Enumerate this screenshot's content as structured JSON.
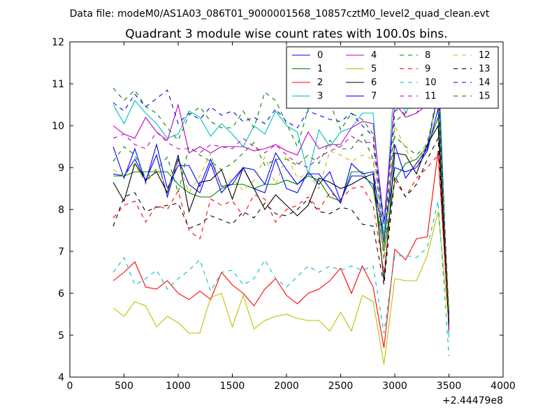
{
  "chart_data": {
    "type": "line",
    "suptitle": "Data file: modeM0/AS1A03_086T01_9000001568_10857cztM0_level2_quad_clean.evt",
    "title": "Quadrant 3 module wise count rates with 100.0s bins.",
    "xlabel": "",
    "ylabel": "",
    "x_offset_label": "+2.44479e8",
    "xlim": [
      0,
      4000
    ],
    "ylim": [
      4,
      12
    ],
    "xticks": [
      0,
      500,
      1000,
      1500,
      2000,
      2500,
      3000,
      3500,
      4000
    ],
    "yticks": [
      4,
      5,
      6,
      7,
      8,
      9,
      10,
      11,
      12
    ],
    "x": [
      400,
      500,
      600,
      700,
      800,
      900,
      1000,
      1100,
      1200,
      1300,
      1400,
      1500,
      1600,
      1700,
      1800,
      1900,
      2000,
      2100,
      2200,
      2300,
      2400,
      2500,
      2600,
      2700,
      2800,
      2900,
      3000,
      3100,
      3200,
      3300,
      3400,
      3500
    ],
    "legend_position": "top-right",
    "series": [
      {
        "name": "0",
        "color": "#0000ff",
        "dash": "solid",
        "values": [
          8.85,
          8.8,
          9.2,
          8.7,
          9.3,
          8.3,
          9.2,
          8.6,
          8.4,
          9.1,
          8.4,
          8.7,
          9.0,
          8.5,
          8.4,
          9.2,
          8.5,
          8.4,
          8.9,
          8.6,
          8.9,
          8.2,
          8.8,
          8.8,
          8.6,
          7.4,
          9.0,
          8.9,
          9.0,
          9.4,
          10.4,
          5.4
        ]
      },
      {
        "name": "1",
        "color": "#008000",
        "dash": "solid",
        "values": [
          8.8,
          8.8,
          8.9,
          8.9,
          8.9,
          8.9,
          8.6,
          8.4,
          8.3,
          8.3,
          8.5,
          8.6,
          8.6,
          8.5,
          8.6,
          8.6,
          8.7,
          8.6,
          8.8,
          8.7,
          8.3,
          8.2,
          8.9,
          8.9,
          8.5,
          7.0,
          8.7,
          9.1,
          9.2,
          9.5,
          10.2,
          5.3
        ]
      },
      {
        "name": "2",
        "color": "#ff0000",
        "dash": "solid",
        "values": [
          6.3,
          6.5,
          6.75,
          6.15,
          6.1,
          6.3,
          6.0,
          5.85,
          6.05,
          5.85,
          6.5,
          6.2,
          6.0,
          5.7,
          6.1,
          6.35,
          5.95,
          5.75,
          6.0,
          6.1,
          6.3,
          6.6,
          6.0,
          6.65,
          6.15,
          4.7,
          7.05,
          6.8,
          7.3,
          7.35,
          9.4,
          5.2
        ]
      },
      {
        "name": "3",
        "color": "#00bfbf",
        "dash": "solid",
        "values": [
          10.5,
          10.05,
          10.6,
          10.3,
          10.05,
          9.7,
          9.8,
          10.35,
          10.2,
          9.75,
          10.05,
          9.8,
          9.5,
          10.0,
          9.8,
          10.35,
          10.0,
          9.85,
          8.85,
          9.9,
          9.5,
          9.85,
          9.95,
          10.3,
          10.3,
          7.3,
          11.25,
          10.3,
          10.85,
          10.8,
          11.8,
          4.95
        ]
      },
      {
        "name": "4",
        "color": "#bf00bf",
        "dash": "solid",
        "values": [
          10.0,
          9.8,
          9.7,
          10.2,
          9.85,
          9.65,
          10.5,
          9.35,
          9.5,
          9.35,
          9.5,
          9.5,
          9.5,
          9.4,
          9.45,
          9.55,
          9.4,
          9.3,
          9.85,
          9.45,
          9.55,
          9.55,
          9.95,
          10.1,
          10.05,
          7.7,
          10.55,
          10.2,
          10.3,
          10.5,
          11.0,
          5.1
        ]
      },
      {
        "name": "5",
        "color": "#bfbf00",
        "dash": "solid",
        "values": [
          5.65,
          5.45,
          5.8,
          5.7,
          5.2,
          5.45,
          5.3,
          5.05,
          5.05,
          5.9,
          6.0,
          5.2,
          5.95,
          5.15,
          5.35,
          5.45,
          5.5,
          5.4,
          5.35,
          5.35,
          5.1,
          5.55,
          5.1,
          5.95,
          5.8,
          4.3,
          6.35,
          6.3,
          6.3,
          6.9,
          7.95,
          5.25
        ]
      },
      {
        "name": "6",
        "color": "#000000",
        "dash": "solid",
        "values": [
          8.65,
          8.2,
          9.1,
          8.7,
          8.9,
          8.4,
          9.3,
          7.95,
          8.65,
          8.7,
          8.95,
          8.25,
          9.0,
          8.5,
          8.0,
          8.35,
          8.1,
          7.85,
          8.1,
          8.75,
          8.65,
          8.5,
          8.6,
          8.75,
          8.85,
          6.3,
          9.35,
          9.3,
          8.85,
          9.55,
          10.0,
          5.2
        ]
      },
      {
        "name": "7",
        "color": "#0000ff",
        "dash": "solid",
        "values": [
          9.5,
          8.75,
          9.45,
          8.65,
          9.55,
          8.5,
          9.05,
          9.05,
          8.55,
          9.2,
          8.55,
          8.6,
          9.0,
          8.95,
          8.6,
          9.35,
          8.95,
          8.6,
          8.85,
          8.85,
          8.5,
          8.15,
          9.1,
          8.85,
          8.9,
          7.2,
          9.55,
          8.75,
          9.1,
          9.45,
          10.8,
          5.45
        ]
      },
      {
        "name": "8",
        "color": "#008000",
        "dash": "dashed",
        "values": [
          9.15,
          9.5,
          9.3,
          8.75,
          8.95,
          9.25,
          8.4,
          9.5,
          9.3,
          9.15,
          8.95,
          9.1,
          9.35,
          9.6,
          9.05,
          9.2,
          9.2,
          9.05,
          9.3,
          9.1,
          9.65,
          9.45,
          9.45,
          9.8,
          9.2,
          6.8,
          9.75,
          9.5,
          9.3,
          9.55,
          10.85,
          5.55
        ]
      },
      {
        "name": "9",
        "color": "#ff0000",
        "dash": "dashed",
        "values": [
          7.8,
          8.1,
          8.2,
          7.7,
          8.1,
          8.0,
          8.45,
          7.5,
          7.3,
          8.25,
          8.1,
          8.2,
          7.85,
          8.35,
          8.25,
          7.7,
          8.0,
          8.1,
          8.3,
          8.0,
          8.4,
          8.25,
          8.5,
          8.55,
          8.1,
          6.5,
          8.7,
          8.3,
          8.75,
          9.0,
          9.3,
          5.35
        ]
      },
      {
        "name": "10",
        "color": "#00bfbf",
        "dash": "dashed",
        "values": [
          6.5,
          6.85,
          6.2,
          6.35,
          6.55,
          6.1,
          6.35,
          6.55,
          6.8,
          6.05,
          6.5,
          6.55,
          6.2,
          6.35,
          6.8,
          6.35,
          6.15,
          6.4,
          6.65,
          6.5,
          6.65,
          6.55,
          6.65,
          6.55,
          6.65,
          5.05,
          6.9,
          6.9,
          6.85,
          7.1,
          8.2,
          4.5
        ]
      },
      {
        "name": "11",
        "color": "#bf00bf",
        "dash": "dashed",
        "values": [
          9.7,
          9.8,
          9.55,
          9.45,
          9.85,
          9.6,
          9.45,
          9.45,
          9.35,
          9.55,
          9.5,
          9.45,
          9.7,
          9.5,
          9.35,
          9.55,
          9.3,
          9.1,
          9.0,
          9.25,
          9.4,
          9.5,
          9.75,
          9.6,
          9.6,
          7.1,
          10.75,
          10.2,
          10.3,
          10.7,
          11.3,
          5.15
        ]
      },
      {
        "name": "12",
        "color": "#bfbf00",
        "dash": "dashed",
        "values": [
          8.95,
          8.8,
          9.1,
          8.6,
          9.0,
          8.5,
          9.15,
          8.4,
          8.8,
          9.35,
          8.5,
          8.75,
          8.45,
          8.7,
          9.25,
          8.6,
          9.3,
          8.75,
          8.85,
          8.5,
          9.4,
          9.3,
          9.15,
          9.3,
          9.2,
          6.9,
          10.0,
          9.45,
          9.0,
          9.65,
          10.6,
          5.6
        ]
      },
      {
        "name": "13",
        "color": "#000000",
        "dash": "dashed",
        "values": [
          7.6,
          8.3,
          8.4,
          7.95,
          8.05,
          8.1,
          8.15,
          7.55,
          7.65,
          7.85,
          7.75,
          7.65,
          7.95,
          7.8,
          8.15,
          7.9,
          7.85,
          8.0,
          8.25,
          7.95,
          7.9,
          8.05,
          8.0,
          7.65,
          7.6,
          6.2,
          8.8,
          8.3,
          8.6,
          9.2,
          9.7,
          5.25
        ]
      },
      {
        "name": "14",
        "color": "#0000ff",
        "dash": "dashed",
        "values": [
          10.55,
          10.35,
          10.75,
          10.45,
          10.65,
          10.85,
          10.05,
          10.3,
          10.15,
          10.45,
          10.25,
          10.35,
          10.1,
          10.2,
          10.05,
          10.4,
          10.1,
          9.95,
          10.35,
          10.25,
          10.15,
          10.1,
          10.3,
          10.0,
          9.75,
          7.65,
          10.35,
          10.5,
          10.75,
          10.9,
          11.05,
          5.35
        ]
      },
      {
        "name": "15",
        "color": "#008000",
        "dash": "dashed",
        "values": [
          10.9,
          10.6,
          10.85,
          10.45,
          10.3,
          9.95,
          9.65,
          10.25,
          10.45,
          10.1,
          9.95,
          9.95,
          10.35,
          9.95,
          10.8,
          10.6,
          10.05,
          9.5,
          10.4,
          10.5,
          10.55,
          9.9,
          10.3,
          10.15,
          9.8,
          7.15,
          10.1,
          10.3,
          10.55,
          10.6,
          11.3,
          5.3
        ]
      }
    ]
  }
}
